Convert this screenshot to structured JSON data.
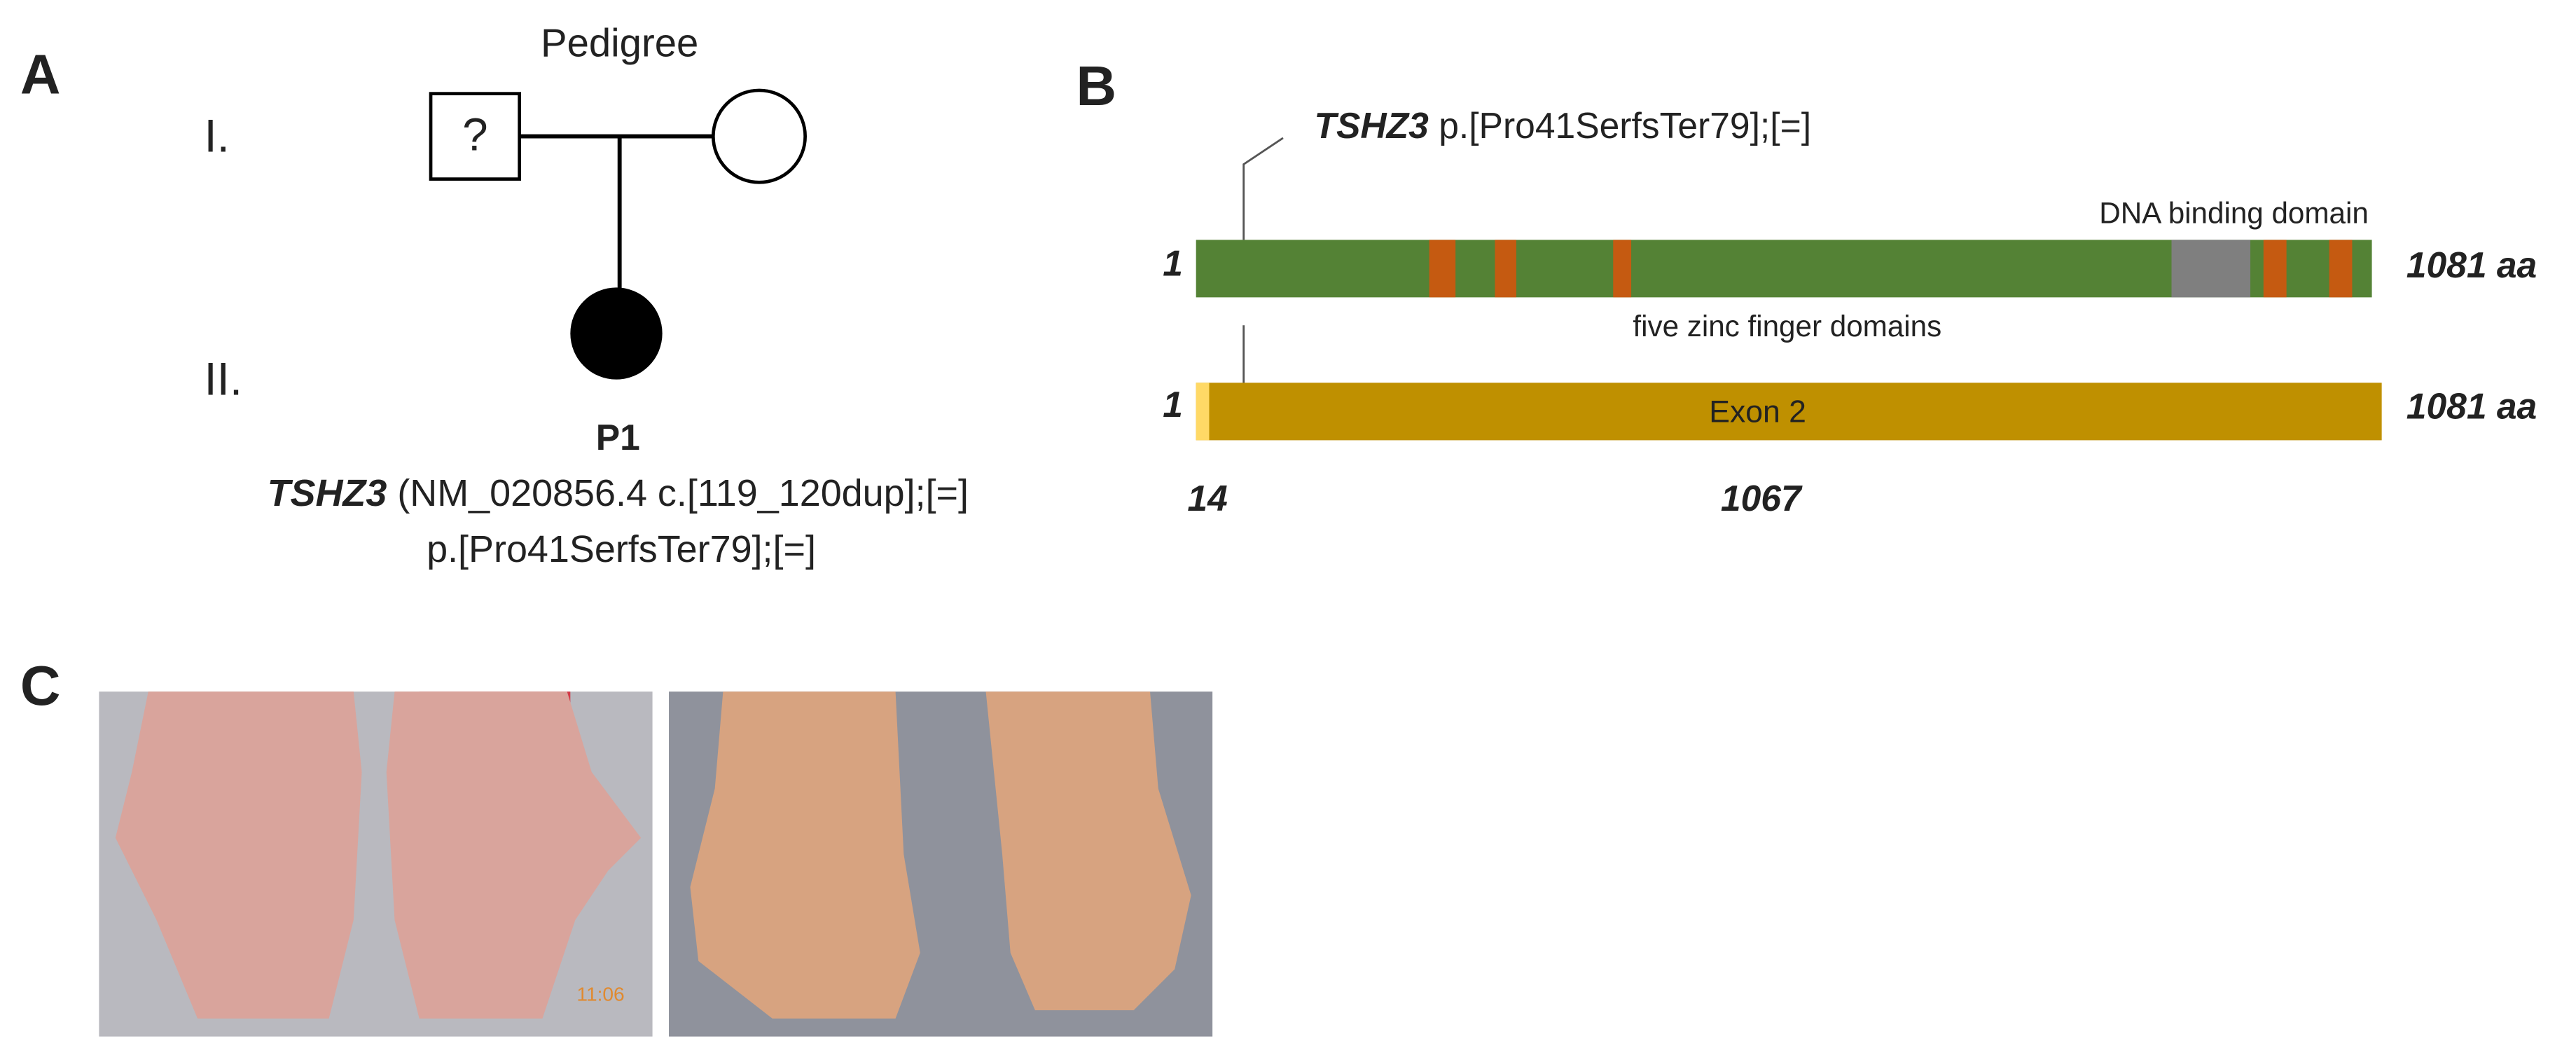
{
  "panel_a": {
    "label": "A",
    "title": "Pedigree",
    "generations": [
      "I.",
      "II."
    ],
    "unknown_marker": "?",
    "proband": "P1",
    "variant_gene": "TSHZ3",
    "variant_cdna": "(NM_020856.4 c.[119_120dup];[=]",
    "variant_protein": "p.[Pro41SerfsTer79];[=]"
  },
  "panel_b": {
    "label": "B",
    "callout_gene": "TSHZ3",
    "callout_variant": "p.[Pro41SerfsTer79];[=]",
    "dna_binding_label": "DNA binding domain",
    "zinc_finger_label": "five zinc finger domains",
    "protein_start": "1",
    "protein_end": "1081 aa",
    "exon_start": "1",
    "exon_end": "1081 aa",
    "exon_label": "Exon 2",
    "exon_positions": [
      "14",
      "1067"
    ]
  },
  "panel_c": {
    "label": "C",
    "photo_timestamp": "11:06"
  }
}
